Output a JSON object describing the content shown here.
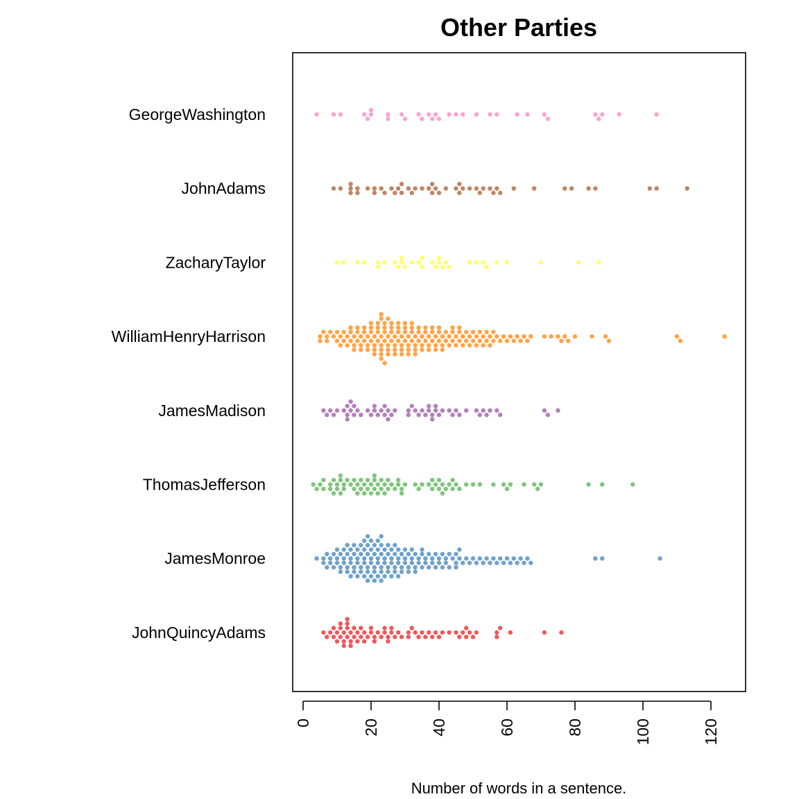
{
  "chart_data": {
    "type": "scatter",
    "subtype": "beeswarm",
    "title": "Other Parties",
    "xlabel": "Number of words in a sentence.",
    "ylabel": "",
    "xlim": [
      -3,
      130
    ],
    "xticks": [
      0,
      20,
      40,
      60,
      80,
      100,
      120
    ],
    "xtick_labels": [
      "0",
      "20",
      "40",
      "60",
      "80",
      "100",
      "120"
    ],
    "grid": false,
    "legend": "none",
    "series": [
      {
        "name": "GeorgeWashington",
        "color": "#F781BF",
        "values": [
          4,
          9,
          11,
          18,
          19,
          20,
          20,
          25,
          25,
          29,
          30,
          34,
          35,
          37,
          38,
          39,
          40,
          43,
          45,
          47,
          51,
          55,
          57,
          63,
          66,
          71,
          72,
          86,
          87,
          88,
          93,
          104
        ]
      },
      {
        "name": "JohnAdams",
        "color": "#A65628",
        "values": [
          9,
          11,
          14,
          14,
          14,
          16,
          16,
          19,
          21,
          21,
          23,
          24,
          26,
          27,
          28,
          29,
          29,
          31,
          32,
          33,
          35,
          37,
          38,
          38,
          39,
          40,
          42,
          45,
          46,
          46,
          47,
          49,
          51,
          52,
          53,
          55,
          56,
          57,
          58,
          62,
          68,
          77,
          79,
          84,
          86,
          102,
          104,
          113
        ]
      },
      {
        "name": "ZacharyTaylor",
        "color": "#FFFF33",
        "values": [
          10,
          12,
          16,
          18,
          22,
          22,
          24,
          27,
          28,
          29,
          29,
          30,
          32,
          34,
          35,
          35,
          38,
          39,
          40,
          40,
          41,
          42,
          43,
          49,
          51,
          53,
          54,
          57,
          60,
          70,
          81,
          87
        ]
      },
      {
        "name": "WilliamHenryHarrison",
        "color": "#FF7F00",
        "values": [
          5,
          5,
          6,
          7,
          7,
          8,
          9,
          10,
          10,
          11,
          11,
          12,
          12,
          13,
          13,
          14,
          14,
          14,
          15,
          15,
          15,
          16,
          16,
          16,
          17,
          17,
          17,
          18,
          18,
          18,
          19,
          19,
          19,
          20,
          20,
          20,
          20,
          21,
          21,
          21,
          21,
          22,
          22,
          22,
          22,
          23,
          23,
          23,
          23,
          23,
          23,
          23,
          24,
          24,
          24,
          24,
          24,
          25,
          25,
          25,
          25,
          25,
          26,
          26,
          26,
          26,
          27,
          27,
          27,
          27,
          28,
          28,
          28,
          28,
          29,
          29,
          29,
          29,
          30,
          30,
          30,
          30,
          31,
          31,
          31,
          31,
          32,
          32,
          32,
          32,
          33,
          33,
          33,
          33,
          34,
          34,
          34,
          35,
          35,
          35,
          36,
          36,
          36,
          37,
          37,
          37,
          38,
          38,
          38,
          39,
          39,
          39,
          40,
          40,
          40,
          41,
          41,
          41,
          42,
          42,
          43,
          43,
          44,
          44,
          44,
          45,
          45,
          46,
          46,
          46,
          47,
          47,
          48,
          48,
          49,
          49,
          50,
          50,
          51,
          51,
          52,
          52,
          53,
          53,
          54,
          54,
          55,
          55,
          56,
          56,
          57,
          58,
          59,
          60,
          61,
          62,
          63,
          64,
          65,
          66,
          67,
          71,
          73,
          75,
          76,
          77,
          78,
          80,
          85,
          89,
          90,
          110,
          111,
          124
        ]
      },
      {
        "name": "JamesMadison",
        "color": "#984EA3",
        "values": [
          6,
          7,
          8,
          9,
          10,
          12,
          13,
          13,
          13,
          14,
          14,
          15,
          15,
          16,
          17,
          19,
          20,
          21,
          21,
          22,
          23,
          24,
          24,
          25,
          25,
          26,
          27,
          31,
          31,
          32,
          33,
          34,
          35,
          36,
          37,
          37,
          38,
          38,
          39,
          39,
          40,
          41,
          43,
          44,
          45,
          46,
          48,
          51,
          52,
          53,
          54,
          55,
          57,
          58,
          71,
          72,
          75
        ]
      },
      {
        "name": "ThomasJefferson",
        "color": "#4DAF4A",
        "values": [
          3,
          4,
          5,
          6,
          6,
          8,
          8,
          9,
          9,
          10,
          10,
          11,
          11,
          11,
          12,
          12,
          13,
          14,
          15,
          15,
          16,
          16,
          17,
          17,
          18,
          18,
          19,
          19,
          20,
          20,
          21,
          21,
          21,
          22,
          22,
          23,
          23,
          24,
          24,
          25,
          25,
          26,
          27,
          28,
          28,
          29,
          29,
          30,
          33,
          34,
          35,
          37,
          38,
          38,
          39,
          40,
          40,
          41,
          41,
          42,
          43,
          44,
          44,
          45,
          46,
          48,
          50,
          52,
          56,
          59,
          60,
          61,
          65,
          68,
          69,
          70,
          84,
          88,
          97
        ]
      },
      {
        "name": "JamesMonroe",
        "color": "#377EB8",
        "values": [
          4,
          6,
          6,
          7,
          7,
          8,
          8,
          9,
          9,
          10,
          10,
          10,
          11,
          11,
          11,
          12,
          12,
          12,
          13,
          13,
          13,
          13,
          14,
          14,
          14,
          14,
          15,
          15,
          15,
          15,
          16,
          16,
          16,
          16,
          17,
          17,
          17,
          17,
          18,
          18,
          18,
          18,
          18,
          19,
          19,
          19,
          19,
          19,
          19,
          20,
          20,
          20,
          20,
          20,
          21,
          21,
          21,
          21,
          21,
          22,
          22,
          22,
          22,
          22,
          23,
          23,
          23,
          23,
          23,
          23,
          24,
          24,
          24,
          24,
          25,
          25,
          25,
          25,
          26,
          26,
          26,
          26,
          27,
          27,
          27,
          27,
          28,
          28,
          28,
          28,
          29,
          29,
          29,
          30,
          30,
          30,
          31,
          31,
          31,
          32,
          32,
          32,
          33,
          33,
          33,
          34,
          34,
          35,
          35,
          35,
          36,
          36,
          37,
          37,
          38,
          38,
          39,
          39,
          40,
          40,
          41,
          41,
          42,
          42,
          43,
          43,
          44,
          45,
          45,
          45,
          46,
          46,
          47,
          48,
          49,
          50,
          51,
          52,
          53,
          54,
          55,
          56,
          57,
          58,
          59,
          60,
          61,
          62,
          63,
          64,
          65,
          66,
          67,
          86,
          88,
          105
        ]
      },
      {
        "name": "JohnQuincyAdams",
        "color": "#E41A1C",
        "values": [
          6,
          7,
          8,
          9,
          9,
          10,
          10,
          11,
          11,
          11,
          12,
          12,
          12,
          13,
          13,
          13,
          13,
          14,
          14,
          14,
          15,
          15,
          16,
          16,
          17,
          17,
          18,
          18,
          19,
          20,
          20,
          21,
          21,
          22,
          23,
          24,
          24,
          25,
          25,
          26,
          26,
          27,
          28,
          29,
          31,
          31,
          32,
          33,
          34,
          35,
          36,
          37,
          38,
          39,
          40,
          41,
          43,
          45,
          46,
          47,
          48,
          48,
          49,
          50,
          51,
          57,
          57,
          58,
          61,
          71,
          76
        ]
      }
    ]
  }
}
